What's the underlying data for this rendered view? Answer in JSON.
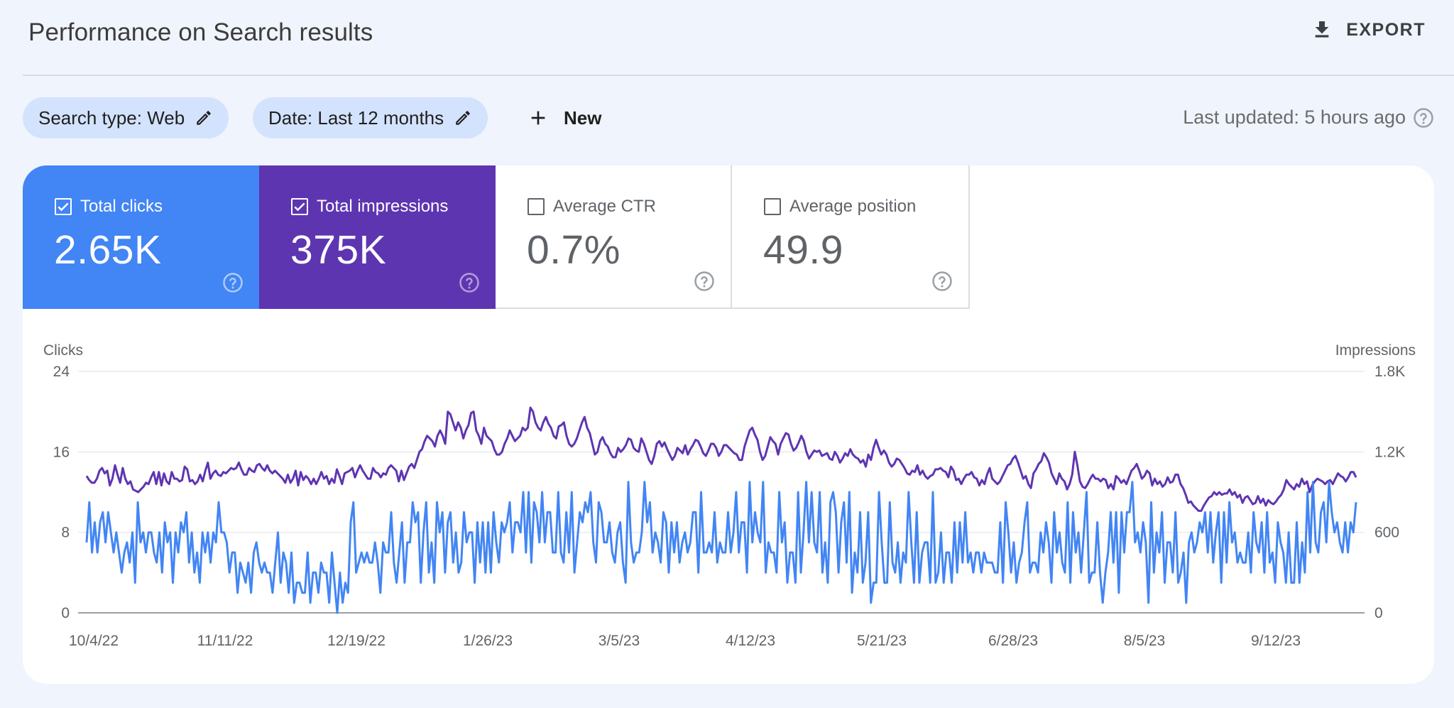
{
  "header": {
    "title": "Performance on Search results",
    "export_label": "EXPORT"
  },
  "filters": {
    "search_type": "Search type: Web",
    "date": "Date: Last 12 months",
    "new_label": "New"
  },
  "status": {
    "last_updated": "Last updated: 5 hours ago"
  },
  "metrics": [
    {
      "label": "Total clicks",
      "value": "2.65K",
      "checked": true,
      "color": "#4285f4"
    },
    {
      "label": "Total impressions",
      "value": "375K",
      "checked": true,
      "color": "#5e35b1"
    },
    {
      "label": "Average CTR",
      "value": "0.7%",
      "checked": false,
      "color": "#ffffff"
    },
    {
      "label": "Average position",
      "value": "49.9",
      "checked": false,
      "color": "#ffffff"
    }
  ],
  "chart_data": {
    "type": "line",
    "left_axis_label": "Clicks",
    "right_axis_label": "Impressions",
    "left_ticks": [
      "0",
      "8",
      "16",
      "24"
    ],
    "right_ticks": [
      "0",
      "600",
      "1.2K",
      "1.8K"
    ],
    "ylim_left": [
      0,
      24
    ],
    "ylim_right": [
      0,
      1800
    ],
    "x_tick_labels": [
      "10/4/22",
      "11/11/22",
      "12/19/22",
      "1/26/23",
      "3/5/23",
      "4/12/23",
      "5/21/23",
      "6/28/23",
      "8/5/23",
      "9/12/23"
    ],
    "grid": true,
    "series": [
      {
        "name": "Clicks",
        "axis": "left",
        "color": "#4285f4",
        "values": [
          7,
          11,
          6,
          9,
          6,
          9,
          10,
          7,
          10,
          8,
          6,
          8,
          6,
          4,
          6,
          7,
          5,
          8,
          3,
          11,
          7,
          8,
          6,
          8,
          8,
          6,
          5,
          8,
          4,
          9,
          7,
          8,
          3,
          8,
          6,
          9,
          8,
          10,
          5,
          8,
          4,
          6,
          3,
          8,
          6,
          8,
          5,
          8,
          7,
          11,
          8,
          8,
          7,
          4,
          6,
          6,
          2,
          5,
          4,
          3,
          5,
          2,
          6,
          7,
          5,
          4,
          5,
          4,
          4,
          2,
          5,
          8,
          3,
          6,
          5,
          2,
          6,
          1,
          3,
          3,
          2,
          2,
          6,
          1,
          4,
          4,
          2,
          5,
          4,
          4,
          1,
          6,
          3,
          0,
          4,
          1,
          3,
          2,
          9,
          11,
          4,
          5,
          6,
          5,
          6,
          5,
          5,
          7,
          5,
          2,
          7,
          6,
          6,
          10,
          5,
          3,
          6,
          9,
          3,
          7,
          7,
          11,
          9,
          10,
          3,
          8,
          11,
          4,
          7,
          3,
          11,
          8,
          10,
          4,
          9,
          10,
          5,
          8,
          4,
          5,
          10,
          7,
          8,
          8,
          3,
          9,
          5,
          9,
          4,
          9,
          4,
          10,
          7,
          5,
          9,
          8,
          9,
          11,
          6,
          9,
          9,
          8,
          12,
          6,
          12,
          5,
          11,
          10,
          7,
          12,
          7,
          10,
          10,
          6,
          6,
          12,
          6,
          5,
          10,
          6,
          12,
          4,
          7,
          10,
          9,
          11,
          10,
          12,
          7,
          5,
          11,
          10,
          7,
          7,
          9,
          6,
          5,
          8,
          9,
          5,
          3,
          13,
          7,
          5,
          6,
          6,
          8,
          13,
          9,
          11,
          6,
          8,
          7,
          5,
          10,
          9,
          4,
          9,
          6,
          9,
          5,
          7,
          8,
          6,
          7,
          10,
          10,
          4,
          12,
          6,
          6,
          7,
          6,
          10,
          5,
          7,
          6,
          6,
          10,
          6,
          8,
          12,
          6,
          9,
          9,
          4,
          13,
          7,
          10,
          8,
          7,
          13,
          4,
          7,
          6,
          6,
          4,
          12,
          7,
          9,
          3,
          6,
          6,
          3,
          12,
          4,
          8,
          13,
          7,
          12,
          7,
          6,
          12,
          4,
          7,
          3,
          11,
          12,
          10,
          4,
          9,
          11,
          5,
          12,
          2,
          6,
          4,
          10,
          3,
          5,
          10,
          1,
          3,
          3,
          12,
          7,
          3,
          3,
          11,
          5,
          4,
          7,
          3,
          6,
          5,
          12,
          7,
          3,
          10,
          3,
          6,
          7,
          7,
          3,
          12,
          3,
          4,
          8,
          3,
          6,
          6,
          3,
          9,
          4,
          9,
          5,
          10,
          5,
          6,
          4,
          6,
          6,
          4,
          6,
          5,
          5,
          5,
          4,
          4,
          9,
          3,
          11,
          8,
          4,
          7,
          3,
          5,
          6,
          9,
          11,
          4,
          5,
          5,
          4,
          8,
          6,
          9,
          7,
          3,
          10,
          6,
          8,
          5,
          4,
          11,
          3,
          10,
          6,
          8,
          4,
          8,
          12,
          3,
          4,
          4,
          9,
          4,
          1,
          4,
          6,
          10,
          5,
          10,
          2,
          10,
          6,
          10,
          10,
          13,
          7,
          8,
          6,
          9,
          7,
          1,
          11,
          4,
          8,
          6,
          10,
          3,
          7,
          7,
          4,
          10,
          3,
          4,
          6,
          1,
          7,
          8,
          6,
          7,
          9,
          8,
          10,
          6,
          10,
          5,
          8,
          10,
          3,
          10,
          5,
          11,
          7,
          8,
          5,
          6,
          5,
          5,
          8,
          4,
          10,
          7,
          6,
          9,
          4,
          10,
          5,
          6,
          3,
          9,
          7,
          6,
          3,
          8,
          3,
          3,
          9,
          3,
          7,
          4,
          12,
          6,
          13,
          7,
          6,
          10,
          11,
          7,
          13,
          10,
          8,
          9,
          7,
          6,
          9,
          6,
          9,
          8,
          11
        ],
        "values_scale_note_removed": true
      },
      {
        "name": "Impressions",
        "axis": "right",
        "color": "#5e35b1",
        "values": [
          1020,
          990,
          970,
          970,
          1000,
          1060,
          1080,
          1040,
          1060,
          950,
          1000,
          1100,
          1030,
          970,
          1080,
          1000,
          960,
          980,
          920,
          910,
          900,
          920,
          940,
          970,
          960,
          1010,
          1050,
          960,
          1050,
          950,
          1040,
          980,
          960,
          1050,
          1000,
          1000,
          980,
          990,
          1090,
          1070,
          980,
          990,
          960,
          980,
          1030,
          980,
          1060,
          1120,
          1000,
          1040,
          1060,
          1030,
          1020,
          1050,
          1040,
          1060,
          1080,
          1070,
          1080,
          1120,
          1070,
          1030,
          1030,
          1080,
          1060,
          1050,
          1100,
          1110,
          1080,
          1060,
          1100,
          1060,
          1040,
          1060,
          1040,
          1020,
          1000,
          970,
          1030,
          970,
          1000,
          1060,
          950,
          1050,
          990,
          1020,
          1000,
          960,
          1000,
          960,
          1000,
          1050,
          1000,
          1020,
          960,
          1000,
          970,
          1070,
          1020,
          960,
          1040,
          1050,
          1060,
          1080,
          1010,
          1060,
          1100,
          1060,
          1030,
          1000,
          1000,
          1080,
          1050,
          1040,
          1010,
          1040,
          1030,
          1080,
          1100,
          1080,
          1060,
          980,
          1060,
          990,
          1040,
          1090,
          1110,
          1080,
          1140,
          1200,
          1220,
          1280,
          1320,
          1300,
          1280,
          1240,
          1320,
          1360,
          1320,
          1260,
          1500,
          1480,
          1420,
          1360,
          1420,
          1380,
          1300,
          1360,
          1400,
          1490,
          1500,
          1360,
          1320,
          1260,
          1380,
          1320,
          1300,
          1280,
          1220,
          1180,
          1180,
          1200,
          1260,
          1300,
          1360,
          1320,
          1280,
          1300,
          1320,
          1380,
          1360,
          1380,
          1530,
          1500,
          1420,
          1380,
          1360,
          1420,
          1460,
          1410,
          1380,
          1320,
          1300,
          1390,
          1400,
          1420,
          1320,
          1260,
          1240,
          1260,
          1300,
          1360,
          1420,
          1460,
          1380,
          1340,
          1260,
          1180,
          1200,
          1280,
          1310,
          1260,
          1240,
          1190,
          1160,
          1160,
          1230,
          1200,
          1220,
          1250,
          1300,
          1290,
          1230,
          1210,
          1200,
          1300,
          1260,
          1200,
          1140,
          1110,
          1170,
          1260,
          1280,
          1240,
          1270,
          1220,
          1180,
          1140,
          1170,
          1230,
          1210,
          1190,
          1250,
          1180,
          1220,
          1250,
          1290,
          1280,
          1240,
          1190,
          1170,
          1210,
          1260,
          1260,
          1230,
          1170,
          1200,
          1250,
          1250,
          1230,
          1210,
          1190,
          1180,
          1140,
          1140,
          1240,
          1300,
          1360,
          1380,
          1330,
          1290,
          1200,
          1140,
          1170,
          1240,
          1310,
          1280,
          1260,
          1180,
          1260,
          1300,
          1340,
          1330,
          1260,
          1210,
          1230,
          1270,
          1320,
          1280,
          1200,
          1150,
          1180,
          1210,
          1200,
          1210,
          1170,
          1180,
          1190,
          1150,
          1140,
          1200,
          1170,
          1120,
          1150,
          1190,
          1170,
          1220,
          1180,
          1160,
          1150,
          1120,
          1140,
          1090,
          1180,
          1140,
          1230,
          1290,
          1230,
          1180,
          1210,
          1180,
          1120,
          1090,
          1110,
          1150,
          1140,
          1110,
          1080,
          1040,
          1030,
          1060,
          1050,
          1100,
          1030,
          1060,
          1020,
          1000,
          1020,
          1030,
          1070,
          1070,
          1080,
          1060,
          1050,
          1010,
          1090,
          1060,
          990,
          1000,
          960,
          1000,
          1030,
          1030,
          1050,
          1010,
          1000,
          950,
          990,
          960,
          1030,
          1080,
          1000,
          980,
          960,
          980,
          1020,
          1060,
          1100,
          1110,
          1150,
          1170,
          1120,
          1060,
          1000,
          1020,
          960,
          930,
          1040,
          1070,
          1110,
          1130,
          1190,
          1160,
          1120,
          1040,
          1000,
          960,
          1040,
          1000,
          980,
          920,
          960,
          1030,
          1200,
          1100,
          980,
          940,
          930,
          960,
          1000,
          1030,
          1000,
          1000,
          980,
          1000,
          990,
          930,
          960,
          920,
          1020,
          1000,
          970,
          990,
          960,
          1010,
          1060,
          1080,
          1110,
          1060,
          1000,
          1020,
          1060,
          1040,
          950,
          1000,
          960,
          980,
          940,
          960,
          1010,
          970,
          980,
          1030,
          1030,
          960,
          930,
          880,
          820,
          830,
          800,
          780,
          760,
          760,
          800,
          830,
          860,
          870,
          900,
          880,
          900,
          880,
          890,
          890,
          920,
          880,
          900,
          860,
          880,
          820,
          860,
          870,
          840,
          810,
          820,
          870,
          820,
          850,
          800,
          840,
          820,
          810,
          830,
          860,
          880,
          920,
          990,
          960,
          940,
          920,
          960,
          940,
          1000,
          960,
          980,
          900,
          950,
          980,
          1000,
          990,
          980,
          960,
          980,
          990,
          960,
          1000,
          1040,
          1020,
          1010,
          980,
          1010,
          1050,
          1050,
          1010
        ]
      }
    ]
  }
}
